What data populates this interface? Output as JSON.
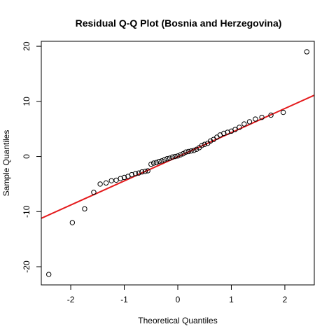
{
  "chart_data": {
    "type": "scatter",
    "title": "Residual Q-Q Plot (Bosnia and Herzegovina)",
    "xlabel": "Theoretical Quantiles",
    "ylabel": "Sample Quantiles",
    "xlim": [
      -2.55,
      2.55
    ],
    "ylim": [
      -23.3,
      20.9
    ],
    "x_ticks": [
      -2,
      -1,
      0,
      1,
      2
    ],
    "y_ticks": [
      -20,
      -10,
      0,
      10,
      20
    ],
    "grid": false,
    "legend": "none",
    "point_color": "#000000",
    "line_color": "#e41a1c",
    "reference_line": {
      "intercept": -0.05,
      "slope": 4.38
    },
    "series": [
      {
        "x": [
          -2.41,
          -1.97,
          -1.74,
          -1.57,
          -1.45,
          -1.34,
          -1.24,
          -1.15,
          -1.07,
          -1.0,
          -0.93,
          -0.86,
          -0.79,
          -0.73,
          -0.67,
          -0.61,
          -0.56,
          -0.5,
          -0.45,
          -0.4,
          -0.35,
          -0.3,
          -0.25,
          -0.2,
          -0.15,
          -0.1,
          -0.05,
          0.0,
          0.05,
          0.1,
          0.15,
          0.2,
          0.25,
          0.3,
          0.35,
          0.4,
          0.45,
          0.5,
          0.56,
          0.61,
          0.67,
          0.73,
          0.79,
          0.86,
          0.93,
          1.0,
          1.07,
          1.15,
          1.24,
          1.34,
          1.45,
          1.57,
          1.74,
          1.97,
          2.41
        ],
        "y": [
          -21.4,
          -12.0,
          -9.5,
          -6.5,
          -5.0,
          -4.8,
          -4.4,
          -4.3,
          -4.0,
          -3.8,
          -3.6,
          -3.3,
          -3.1,
          -3.0,
          -2.8,
          -2.7,
          -2.6,
          -1.4,
          -1.2,
          -1.1,
          -0.9,
          -0.8,
          -0.6,
          -0.4,
          -0.3,
          -0.1,
          0.0,
          0.1,
          0.3,
          0.5,
          0.8,
          0.9,
          1.0,
          1.1,
          1.3,
          1.6,
          2.0,
          2.2,
          2.4,
          2.8,
          3.1,
          3.5,
          3.9,
          4.2,
          4.4,
          4.6,
          4.9,
          5.3,
          5.9,
          6.3,
          6.8,
          7.1,
          7.5,
          8.0,
          19.0
        ]
      }
    ]
  }
}
